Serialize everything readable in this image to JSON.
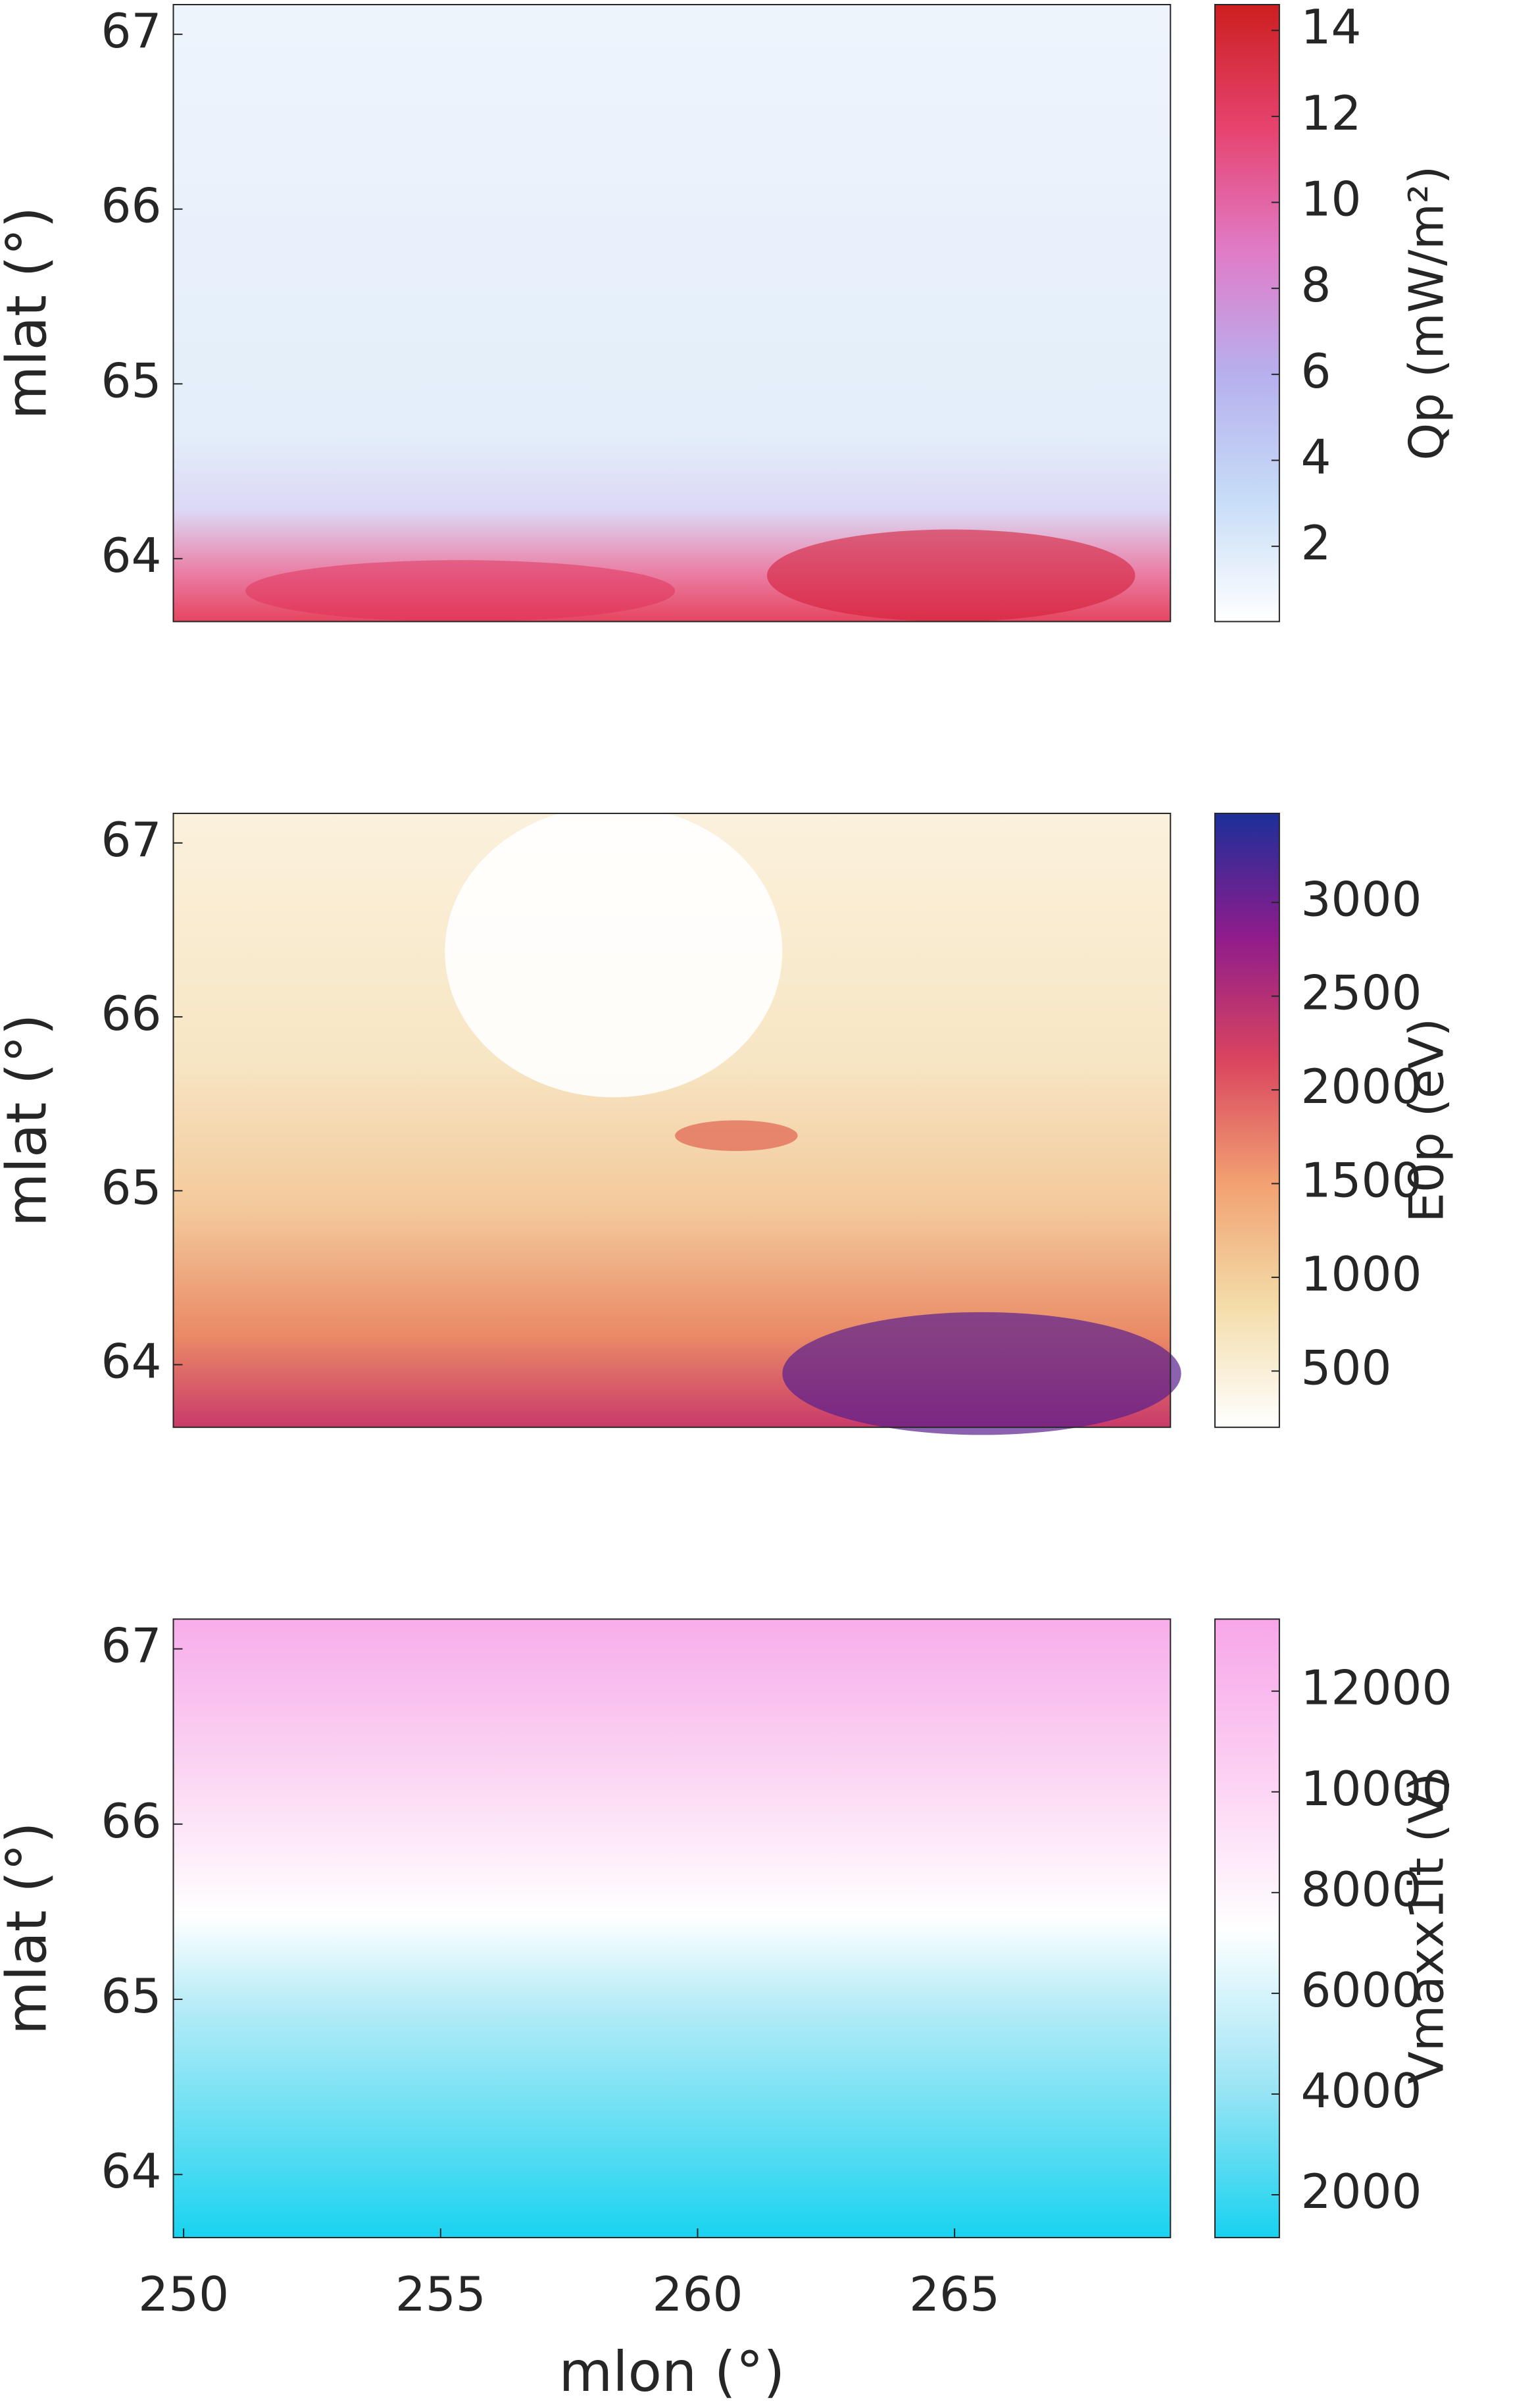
{
  "chart_data": [
    {
      "type": "heatmap",
      "ylabel": "mlat (°)",
      "ylim": [
        63.64,
        67.17
      ],
      "yticks": [
        64,
        65,
        66,
        67
      ],
      "colorbar": {
        "label": "Qp (mW/m²)",
        "lim": [
          0.25,
          14.6
        ],
        "ticks": [
          2,
          4,
          6,
          8,
          10,
          12,
          14
        ],
        "colors": [
          "#ffffff",
          "#c6dcf7",
          "#b7b0ee",
          "#e07cc8",
          "#e6436f",
          "#cc1f1f"
        ]
      }
    },
    {
      "type": "heatmap",
      "ylabel": "mlat (°)",
      "ylim": [
        63.64,
        67.17
      ],
      "yticks": [
        64,
        65,
        66,
        67
      ],
      "colorbar": {
        "label": "E0p (eV)",
        "lim": [
          200,
          3475
        ],
        "ticks": [
          500,
          1000,
          1500,
          2000,
          2500,
          3000
        ],
        "colors": [
          "#ffffff",
          "#f3dca8",
          "#f2a071",
          "#d9445f",
          "#8f1c8c",
          "#1c2f9a"
        ]
      }
    },
    {
      "type": "heatmap",
      "ylabel": "mlat (°)",
      "xlabel": "mlon (°)",
      "xlim": [
        249.8,
        269.2
      ],
      "xticks": [
        250,
        255,
        260,
        265
      ],
      "ylim": [
        63.64,
        67.17
      ],
      "yticks": [
        64,
        65,
        66,
        67
      ],
      "colorbar": {
        "label": "Vmaxx1it (V)",
        "lim": [
          1150,
          13430
        ],
        "ticks": [
          2000,
          4000,
          6000,
          8000,
          10000,
          12000
        ],
        "colors": [
          "#18d2ef",
          "#9fe5f5",
          "#ffffff",
          "#fcd0f3",
          "#f7a6e8"
        ]
      }
    }
  ]
}
